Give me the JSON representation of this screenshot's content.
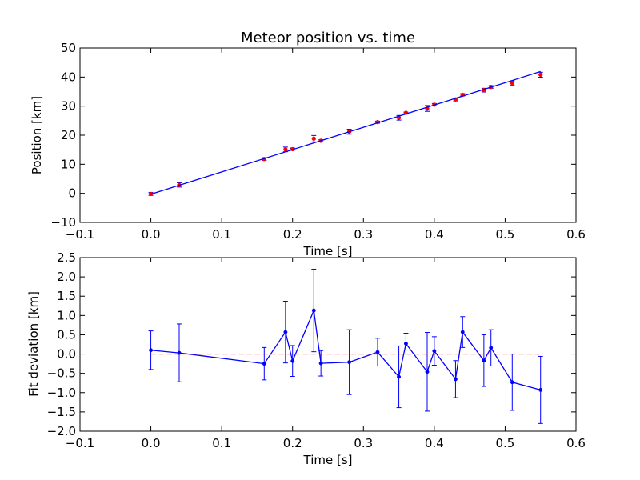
{
  "colors": {
    "background": "#ffffff",
    "axes": "#000000",
    "fit_line": "#0000ff",
    "data_points": "#ff0000",
    "errorbars_top": "#0000ff",
    "deviation_series": "#0000ff",
    "zero_reference": "#ff0000"
  },
  "chart_data": [
    {
      "type": "scatter",
      "title": "Meteor position vs. time",
      "xlabel": "Time [s]",
      "ylabel": "Position [km]",
      "xlim": [
        -0.1,
        0.6
      ],
      "ylim": [
        -10,
        50
      ],
      "xticks": [
        -0.1,
        0.0,
        0.1,
        0.2,
        0.3,
        0.4,
        0.5,
        0.6
      ],
      "xtick_labels": [
        "−0.1",
        "0.0",
        "0.1",
        "0.2",
        "0.3",
        "0.4",
        "0.5",
        "0.6"
      ],
      "yticks": [
        -10,
        0,
        10,
        20,
        30,
        40,
        50
      ],
      "ytick_labels": [
        "−10",
        "0",
        "10",
        "20",
        "30",
        "40",
        "50"
      ],
      "grid": false,
      "series": [
        {
          "kind": "errorbar-points",
          "color": "red",
          "x": [
            0.0,
            0.04,
            0.16,
            0.19,
            0.2,
            0.23,
            0.24,
            0.28,
            0.32,
            0.35,
            0.36,
            0.39,
            0.4,
            0.43,
            0.44,
            0.47,
            0.48,
            0.51,
            0.55
          ],
          "y": [
            -0.2,
            2.9,
            11.8,
            15.1,
            15.2,
            18.8,
            18.1,
            21.2,
            24.5,
            26.0,
            27.7,
            29.2,
            30.5,
            32.3,
            33.9,
            35.5,
            36.6,
            38.0,
            40.8
          ],
          "yerr": [
            0.5,
            0.75,
            0.45,
            0.8,
            0.4,
            1.1,
            0.35,
            0.85,
            0.35,
            0.8,
            0.25,
            1.0,
            0.4,
            0.5,
            0.4,
            0.65,
            0.45,
            0.75,
            0.85
          ]
        },
        {
          "kind": "fit-line",
          "color": "blue",
          "x": [
            0.0,
            0.55
          ],
          "y": [
            -0.3,
            41.9
          ]
        }
      ]
    },
    {
      "type": "line",
      "title": "",
      "xlabel": "Time [s]",
      "ylabel": "Fit deviation [km]",
      "xlim": [
        -0.1,
        0.6
      ],
      "ylim": [
        -2.0,
        2.5
      ],
      "xticks": [
        -0.1,
        0.0,
        0.1,
        0.2,
        0.3,
        0.4,
        0.5,
        0.6
      ],
      "xtick_labels": [
        "−0.1",
        "0.0",
        "0.1",
        "0.2",
        "0.3",
        "0.4",
        "0.5",
        "0.6"
      ],
      "yticks": [
        -2.0,
        -1.5,
        -1.0,
        -0.5,
        0.0,
        0.5,
        1.0,
        1.5,
        2.0,
        2.5
      ],
      "ytick_labels": [
        "−2.0",
        "−1.5",
        "−1.0",
        "−0.5",
        "0.0",
        "0.5",
        "1.0",
        "1.5",
        "2.0",
        "2.5"
      ],
      "grid": false,
      "series": [
        {
          "kind": "errorbar-line",
          "color": "blue",
          "x": [
            0.0,
            0.04,
            0.16,
            0.19,
            0.2,
            0.23,
            0.24,
            0.28,
            0.32,
            0.35,
            0.36,
            0.39,
            0.4,
            0.43,
            0.44,
            0.47,
            0.48,
            0.51,
            0.55
          ],
          "y": [
            0.1,
            0.03,
            -0.25,
            0.57,
            -0.18,
            1.13,
            -0.24,
            -0.21,
            0.05,
            -0.59,
            0.27,
            -0.46,
            0.08,
            -0.65,
            0.57,
            -0.17,
            0.16,
            -0.73,
            -0.93
          ],
          "yerr": [
            0.5,
            0.75,
            0.42,
            0.8,
            0.4,
            1.07,
            0.33,
            0.84,
            0.36,
            0.8,
            0.27,
            1.02,
            0.37,
            0.48,
            0.4,
            0.67,
            0.47,
            0.73,
            0.87
          ]
        },
        {
          "kind": "zero-reference",
          "color": "red",
          "style": "dashed",
          "x": [
            0.0,
            0.55
          ],
          "y": [
            0.0,
            0.0
          ]
        }
      ]
    }
  ]
}
